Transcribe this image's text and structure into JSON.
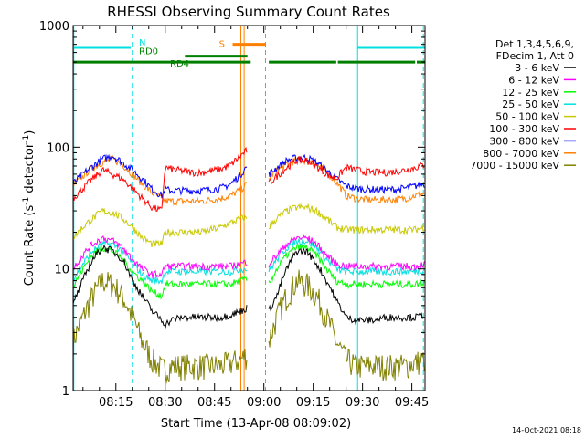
{
  "chart_data": {
    "type": "line",
    "title": "RHESSI Observing Summary Count Rates",
    "xlabel": "Start Time (13-Apr-08 08:09:02)",
    "ylabel_main": "Count Rate (s",
    "ylabel_sup1": "-1",
    "ylabel_mid": " detector",
    "ylabel_sup2": "-1",
    "ylabel_end": ")",
    "yscale": "log",
    "ylim": [
      1,
      1000
    ],
    "xlim_minutes": [
      482,
      589
    ],
    "y_ticks": [
      {
        "value": 1,
        "label": "1"
      },
      {
        "value": 10,
        "label": "10"
      },
      {
        "value": 100,
        "label": "100"
      },
      {
        "value": 1000,
        "label": "1000"
      }
    ],
    "x_ticks": [
      {
        "value": 495,
        "label": "08:15"
      },
      {
        "value": 510,
        "label": "08:30"
      },
      {
        "value": 525,
        "label": "08:45"
      },
      {
        "value": 540,
        "label": "09:00"
      },
      {
        "value": 555,
        "label": "09:15"
      },
      {
        "value": 570,
        "label": "09:30"
      },
      {
        "value": 585,
        "label": "09:45"
      }
    ],
    "legend": {
      "placement": "right",
      "header": [
        "Det 1,3,4,5,6,9,",
        "FDecim 1, Att 0"
      ]
    },
    "gaps": [
      [
        535.0,
        541.5
      ]
    ],
    "flags": [
      {
        "label": "N",
        "color": "#00e0e0",
        "level": 660,
        "segments": [
          [
            482,
            499.5
          ],
          [
            568.5,
            589
          ]
        ]
      },
      {
        "label": "S",
        "color": "#ff8000",
        "level": 700,
        "segments": [
          [
            530.5,
            540.5
          ]
        ]
      },
      {
        "label": "RD0",
        "color": "#008000",
        "level": 560,
        "segments": [
          [
            516,
            535
          ]
        ]
      },
      {
        "label": "RD4",
        "color": "#008000",
        "level": 500,
        "segments": [
          [
            482,
            536
          ],
          [
            541.5,
            562
          ],
          [
            562.5,
            586
          ],
          [
            586.5,
            589
          ]
        ]
      }
    ],
    "vlines": [
      {
        "x": 482.2,
        "color": "#00e0e0",
        "style": "solid"
      },
      {
        "x": 500,
        "color": "#00e0e0",
        "style": "dashed"
      },
      {
        "x": 533,
        "color": "#ff8000",
        "style": "solid"
      },
      {
        "x": 534,
        "color": "#ff8000",
        "style": "solid"
      },
      {
        "x": 540.5,
        "color": "#ff8000",
        "style": "dashed"
      },
      {
        "x": 568.5,
        "color": "#00e0e0",
        "style": "solid"
      },
      {
        "x": 588.5,
        "color": "#00e0e0",
        "style": "dashed"
      }
    ],
    "x_minutes": [
      482,
      485,
      488,
      491,
      494,
      497,
      500,
      503,
      506,
      509,
      510,
      512,
      515,
      518,
      521,
      524,
      527,
      530,
      533,
      535,
      541.5,
      544,
      547,
      550,
      553,
      556,
      559,
      562,
      565,
      568,
      571,
      574,
      577,
      580,
      583,
      586,
      589
    ],
    "series": [
      {
        "name": "3 - 6 keV",
        "color": "#000000",
        "values": [
          5,
          8,
          12,
          15,
          14,
          12,
          8,
          6,
          4.5,
          3.8,
          3.5,
          3.8,
          4,
          4,
          4,
          4,
          4,
          4.2,
          4.5,
          4.8,
          4.5,
          6,
          10,
          14,
          14,
          11,
          8,
          5.5,
          4,
          3.8,
          3.8,
          3.8,
          4,
          4,
          4,
          4,
          4.2
        ]
      },
      {
        "name": "6 - 12 keV",
        "color": "#ff00ff",
        "values": [
          10,
          13,
          16,
          18,
          17,
          15,
          12,
          10,
          9,
          9,
          10.5,
          10.5,
          10.5,
          10.5,
          10.5,
          10.5,
          10.5,
          10.5,
          11,
          11.5,
          11,
          13,
          16,
          18,
          18,
          16,
          13,
          11,
          10.5,
          10.5,
          10.5,
          10.5,
          10.5,
          10.5,
          10.5,
          10.5,
          11
        ]
      },
      {
        "name": "12 - 25 keV",
        "color": "#00ff00",
        "values": [
          7,
          10,
          13,
          15,
          14,
          12,
          9.5,
          8,
          6.5,
          6,
          7.5,
          7.5,
          7.5,
          7.5,
          7.5,
          7.5,
          7.5,
          7.5,
          8,
          8.2,
          7.5,
          10,
          13,
          15,
          15,
          13,
          10,
          8,
          7.5,
          7.5,
          7.5,
          7.5,
          7.5,
          7.5,
          7.5,
          7.5,
          7.8
        ]
      },
      {
        "name": "25 - 50 keV",
        "color": "#00e0e0",
        "values": [
          8,
          11,
          14,
          16,
          16,
          14,
          11,
          9,
          8,
          8,
          9.5,
          9.5,
          9.5,
          9.5,
          9.5,
          9.5,
          9.5,
          9.5,
          10,
          10,
          9.5,
          12,
          15,
          17,
          17,
          15,
          12,
          10,
          9.5,
          9.5,
          9.5,
          9.5,
          9.5,
          9.5,
          9.5,
          9.5,
          10
        ]
      },
      {
        "name": "50 - 100 keV",
        "color": "#c8c800",
        "values": [
          18,
          22,
          26,
          30,
          29,
          26,
          22,
          18,
          16,
          16,
          20,
          20,
          20,
          20,
          20,
          21,
          22,
          24,
          26,
          26,
          22,
          26,
          30,
          32,
          32,
          30,
          26,
          22,
          21,
          21,
          21,
          21,
          21,
          21,
          21,
          21,
          22
        ]
      },
      {
        "name": "100 - 300 keV",
        "color": "#ff0000",
        "values": [
          38,
          46,
          55,
          65,
          60,
          55,
          46,
          38,
          32,
          30,
          68,
          66,
          64,
          62,
          62,
          64,
          66,
          72,
          85,
          95,
          50,
          58,
          68,
          78,
          78,
          70,
          60,
          55,
          68,
          65,
          63,
          62,
          62,
          63,
          65,
          68,
          72
        ]
      },
      {
        "name": "300 - 800 keV",
        "color": "#0000ff",
        "values": [
          50,
          60,
          70,
          80,
          85,
          75,
          65,
          55,
          45,
          40,
          45,
          44,
          44,
          44,
          44,
          45,
          46,
          50,
          60,
          70,
          60,
          68,
          78,
          82,
          82,
          75,
          65,
          55,
          48,
          46,
          45,
          45,
          45,
          45,
          46,
          48,
          50
        ]
      },
      {
        "name": "800 - 7000 keV",
        "color": "#ff8000",
        "values": [
          48,
          58,
          68,
          75,
          80,
          72,
          60,
          50,
          42,
          38,
          36,
          36,
          36,
          36,
          36,
          37,
          38,
          40,
          45,
          50,
          55,
          65,
          72,
          78,
          78,
          72,
          62,
          52,
          40,
          38,
          37,
          37,
          37,
          37,
          38,
          40,
          42
        ]
      },
      {
        "name": "7000 - 15000 keV",
        "color": "#808000",
        "values": [
          2.5,
          4,
          6,
          8,
          7.5,
          6,
          4,
          2.5,
          1.8,
          1.5,
          1.5,
          1.6,
          1.6,
          1.6,
          1.6,
          1.6,
          1.6,
          1.7,
          1.8,
          2,
          2.5,
          4,
          6,
          8,
          7.5,
          6,
          4,
          2.5,
          1.8,
          1.6,
          1.6,
          1.6,
          1.6,
          1.6,
          1.6,
          1.7,
          1.8
        ]
      }
    ],
    "footer_date": "14-Oct-2021 08:18"
  }
}
